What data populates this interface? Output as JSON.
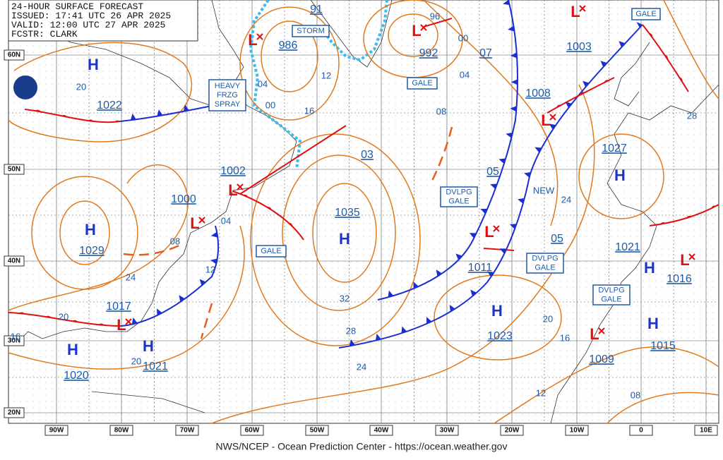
{
  "header": {
    "lines": [
      "24-HOUR SURFACE FORECAST",
      "ISSUED: 17:41 UTC 26 APR 2025",
      "VALID: 12:00 UTC 27 APR 2025",
      "FCSTR: CLARK"
    ]
  },
  "latitude_labels": [
    "60N",
    "50N",
    "40N",
    "30N",
    "20N"
  ],
  "longitude_labels": [
    "90W",
    "80W",
    "70W",
    "60W",
    "50W",
    "40W",
    "30W",
    "20W",
    "10W",
    "0",
    "10E"
  ],
  "pressure_centers": [
    {
      "symbol": "H",
      "pressure": "1022"
    },
    {
      "symbol": "H",
      "pressure": "1029"
    },
    {
      "symbol": "H",
      "pressure": "1020"
    },
    {
      "symbol": "H",
      "pressure": "1021"
    },
    {
      "symbol": "L",
      "pressure": "1017"
    },
    {
      "symbol": "L",
      "pressure": "1000"
    },
    {
      "symbol": "L",
      "pressure": "1002"
    },
    {
      "symbol": "L",
      "pressure": "986"
    },
    {
      "symbol": "L",
      "pressure": "992"
    },
    {
      "symbol": "L",
      "pressure": "1003"
    },
    {
      "symbol": "L",
      "pressure": "1008"
    },
    {
      "symbol": "H",
      "pressure": "1035"
    },
    {
      "symbol": "H",
      "pressure": "1027"
    },
    {
      "symbol": "H",
      "pressure": "1023"
    },
    {
      "symbol": "H",
      "pressure": "1021"
    },
    {
      "symbol": "L",
      "pressure": "1016"
    },
    {
      "symbol": "H",
      "pressure": "1015"
    },
    {
      "symbol": "L",
      "pressure": "1009"
    },
    {
      "symbol": "L",
      "pressure": "1011"
    }
  ],
  "isobar_labels": [
    "20",
    "12",
    "16",
    "04",
    "00",
    "04",
    "08",
    "12",
    "24",
    "20",
    "16",
    "20",
    "32",
    "28",
    "24",
    "03",
    "08",
    "04",
    "00",
    "96",
    "07",
    "05",
    "24",
    "05",
    "20",
    "16",
    "12",
    "08",
    "28",
    "91"
  ],
  "warnings": [
    "STORM",
    "GALE",
    "HEAVY FRZG SPRAY",
    "GALE",
    "DVLPG GALE",
    "DVLPG GALE",
    "DVLPG GALE",
    "GALE"
  ],
  "annotations": [
    "NEW"
  ],
  "footer": "NWS/NCEP - Ocean Prediction Center - https://ocean.weather.gov"
}
